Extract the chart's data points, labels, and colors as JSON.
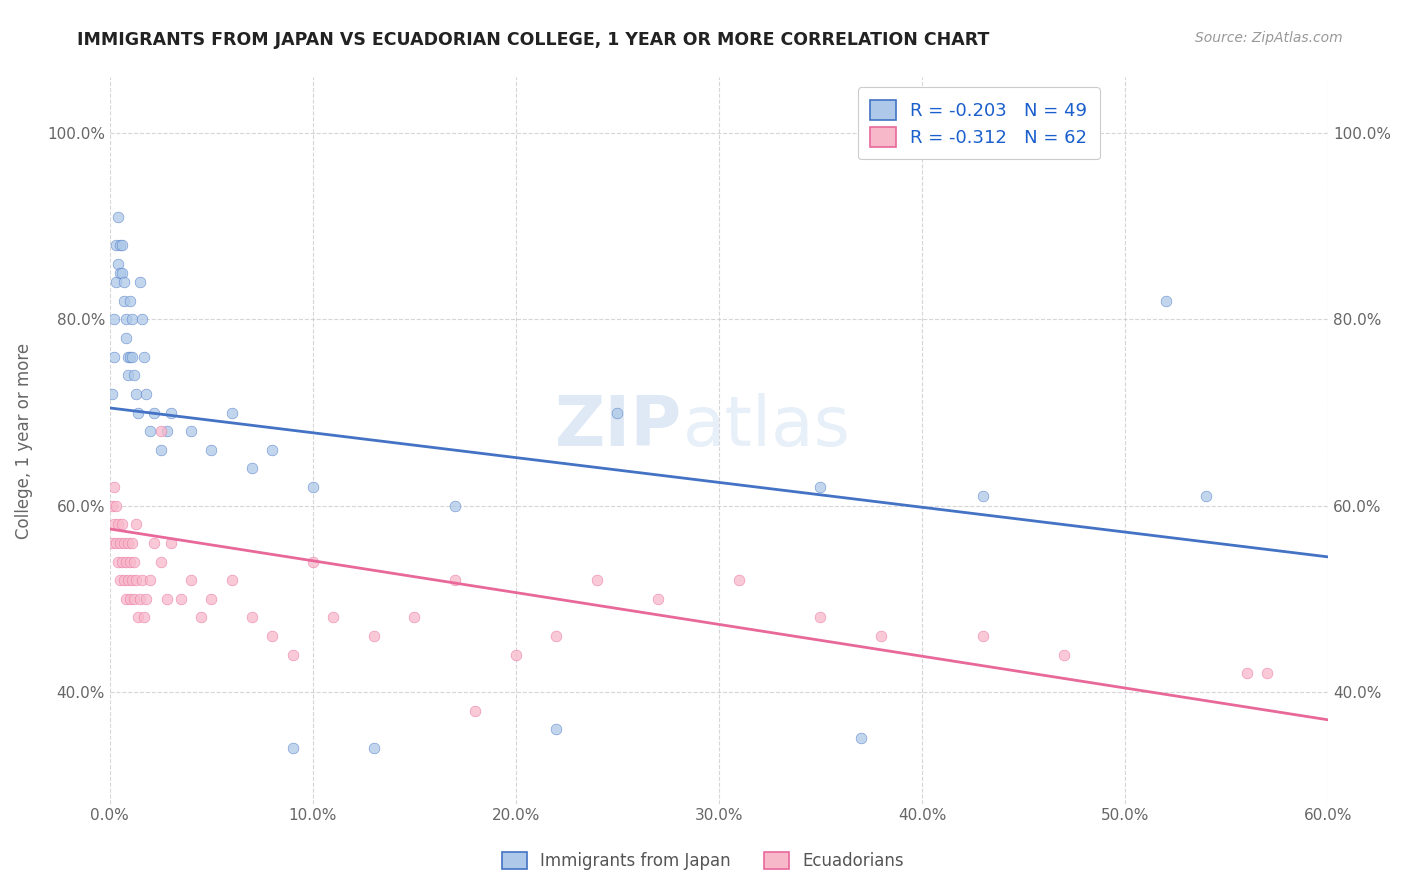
{
  "title": "IMMIGRANTS FROM JAPAN VS ECUADORIAN COLLEGE, 1 YEAR OR MORE CORRELATION CHART",
  "source_text": "Source: ZipAtlas.com",
  "ylabel": "College, 1 year or more",
  "xlim": [
    0.0,
    0.6
  ],
  "ylim": [
    0.28,
    1.06
  ],
  "xtick_labels": [
    "0.0%",
    "10.0%",
    "20.0%",
    "30.0%",
    "40.0%",
    "50.0%",
    "60.0%"
  ],
  "xtick_vals": [
    0.0,
    0.1,
    0.2,
    0.3,
    0.4,
    0.5,
    0.6
  ],
  "ytick_labels": [
    "40.0%",
    "60.0%",
    "80.0%",
    "100.0%"
  ],
  "ytick_vals": [
    0.4,
    0.6,
    0.8,
    1.0
  ],
  "legend_label1": "Immigrants from Japan",
  "legend_label2": "Ecuadorians",
  "R1": -0.203,
  "N1": 49,
  "R2": -0.312,
  "N2": 62,
  "color1": "#adc8e8",
  "color2": "#f7b8ca",
  "line_color1": "#4472c4",
  "line_color2": "#e8689a",
  "watermark_zip": "ZIP",
  "watermark_atlas": "atlas",
  "background_color": "#ffffff",
  "blue_line_y0": 0.705,
  "blue_line_y1": 0.545,
  "pink_line_y0": 0.575,
  "pink_line_y1": 0.37,
  "blue_scatter_x": [
    0.001,
    0.002,
    0.002,
    0.003,
    0.003,
    0.004,
    0.004,
    0.005,
    0.005,
    0.006,
    0.006,
    0.007,
    0.007,
    0.008,
    0.008,
    0.009,
    0.009,
    0.01,
    0.01,
    0.011,
    0.011,
    0.012,
    0.013,
    0.014,
    0.015,
    0.016,
    0.017,
    0.018,
    0.02,
    0.022,
    0.025,
    0.028,
    0.03,
    0.04,
    0.05,
    0.06,
    0.07,
    0.08,
    0.09,
    0.1,
    0.13,
    0.17,
    0.22,
    0.25,
    0.35,
    0.37,
    0.43,
    0.52,
    0.54
  ],
  "blue_scatter_y": [
    0.72,
    0.76,
    0.8,
    0.84,
    0.88,
    0.86,
    0.91,
    0.88,
    0.85,
    0.88,
    0.85,
    0.84,
    0.82,
    0.8,
    0.78,
    0.76,
    0.74,
    0.82,
    0.76,
    0.8,
    0.76,
    0.74,
    0.72,
    0.7,
    0.84,
    0.8,
    0.76,
    0.72,
    0.68,
    0.7,
    0.66,
    0.68,
    0.7,
    0.68,
    0.66,
    0.7,
    0.64,
    0.66,
    0.34,
    0.62,
    0.34,
    0.6,
    0.36,
    0.7,
    0.62,
    0.35,
    0.61,
    0.82,
    0.61
  ],
  "pink_scatter_x": [
    0.001,
    0.001,
    0.002,
    0.002,
    0.003,
    0.003,
    0.004,
    0.004,
    0.005,
    0.005,
    0.006,
    0.006,
    0.007,
    0.007,
    0.008,
    0.008,
    0.009,
    0.009,
    0.01,
    0.01,
    0.011,
    0.011,
    0.012,
    0.012,
    0.013,
    0.013,
    0.014,
    0.015,
    0.016,
    0.017,
    0.018,
    0.02,
    0.022,
    0.025,
    0.028,
    0.03,
    0.035,
    0.04,
    0.045,
    0.05,
    0.06,
    0.07,
    0.08,
    0.09,
    0.1,
    0.11,
    0.13,
    0.15,
    0.17,
    0.2,
    0.22,
    0.24,
    0.27,
    0.31,
    0.35,
    0.38,
    0.43,
    0.47,
    0.56,
    0.57,
    0.025,
    0.18
  ],
  "pink_scatter_y": [
    0.6,
    0.56,
    0.58,
    0.62,
    0.56,
    0.6,
    0.58,
    0.54,
    0.56,
    0.52,
    0.58,
    0.54,
    0.56,
    0.52,
    0.54,
    0.5,
    0.52,
    0.56,
    0.54,
    0.5,
    0.52,
    0.56,
    0.5,
    0.54,
    0.52,
    0.58,
    0.48,
    0.5,
    0.52,
    0.48,
    0.5,
    0.52,
    0.56,
    0.54,
    0.5,
    0.56,
    0.5,
    0.52,
    0.48,
    0.5,
    0.52,
    0.48,
    0.46,
    0.44,
    0.54,
    0.48,
    0.46,
    0.48,
    0.52,
    0.44,
    0.46,
    0.52,
    0.5,
    0.52,
    0.48,
    0.46,
    0.46,
    0.44,
    0.42,
    0.42,
    0.68,
    0.38
  ]
}
